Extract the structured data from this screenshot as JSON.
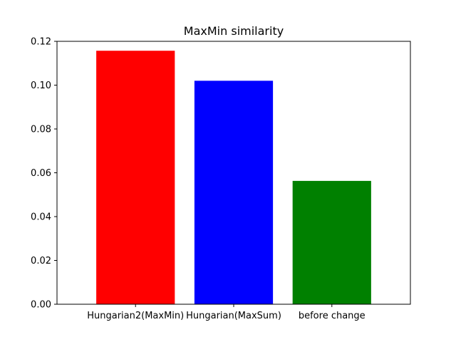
{
  "chart_data": {
    "type": "bar",
    "title": "MaxMin similarity",
    "xlabel": "",
    "ylabel": "",
    "categories": [
      "Hungarian2(MaxMin)",
      "Hungarian(MaxSum)",
      "before change"
    ],
    "values": [
      0.1157,
      0.102,
      0.0563
    ],
    "colors": [
      "#ff0000",
      "#0000ff",
      "#008000"
    ],
    "ylim": [
      0.0,
      0.12
    ],
    "yticks": [
      "0.00",
      "0.02",
      "0.04",
      "0.06",
      "0.08",
      "0.10",
      "0.12"
    ],
    "grid": false,
    "legend": "none"
  }
}
